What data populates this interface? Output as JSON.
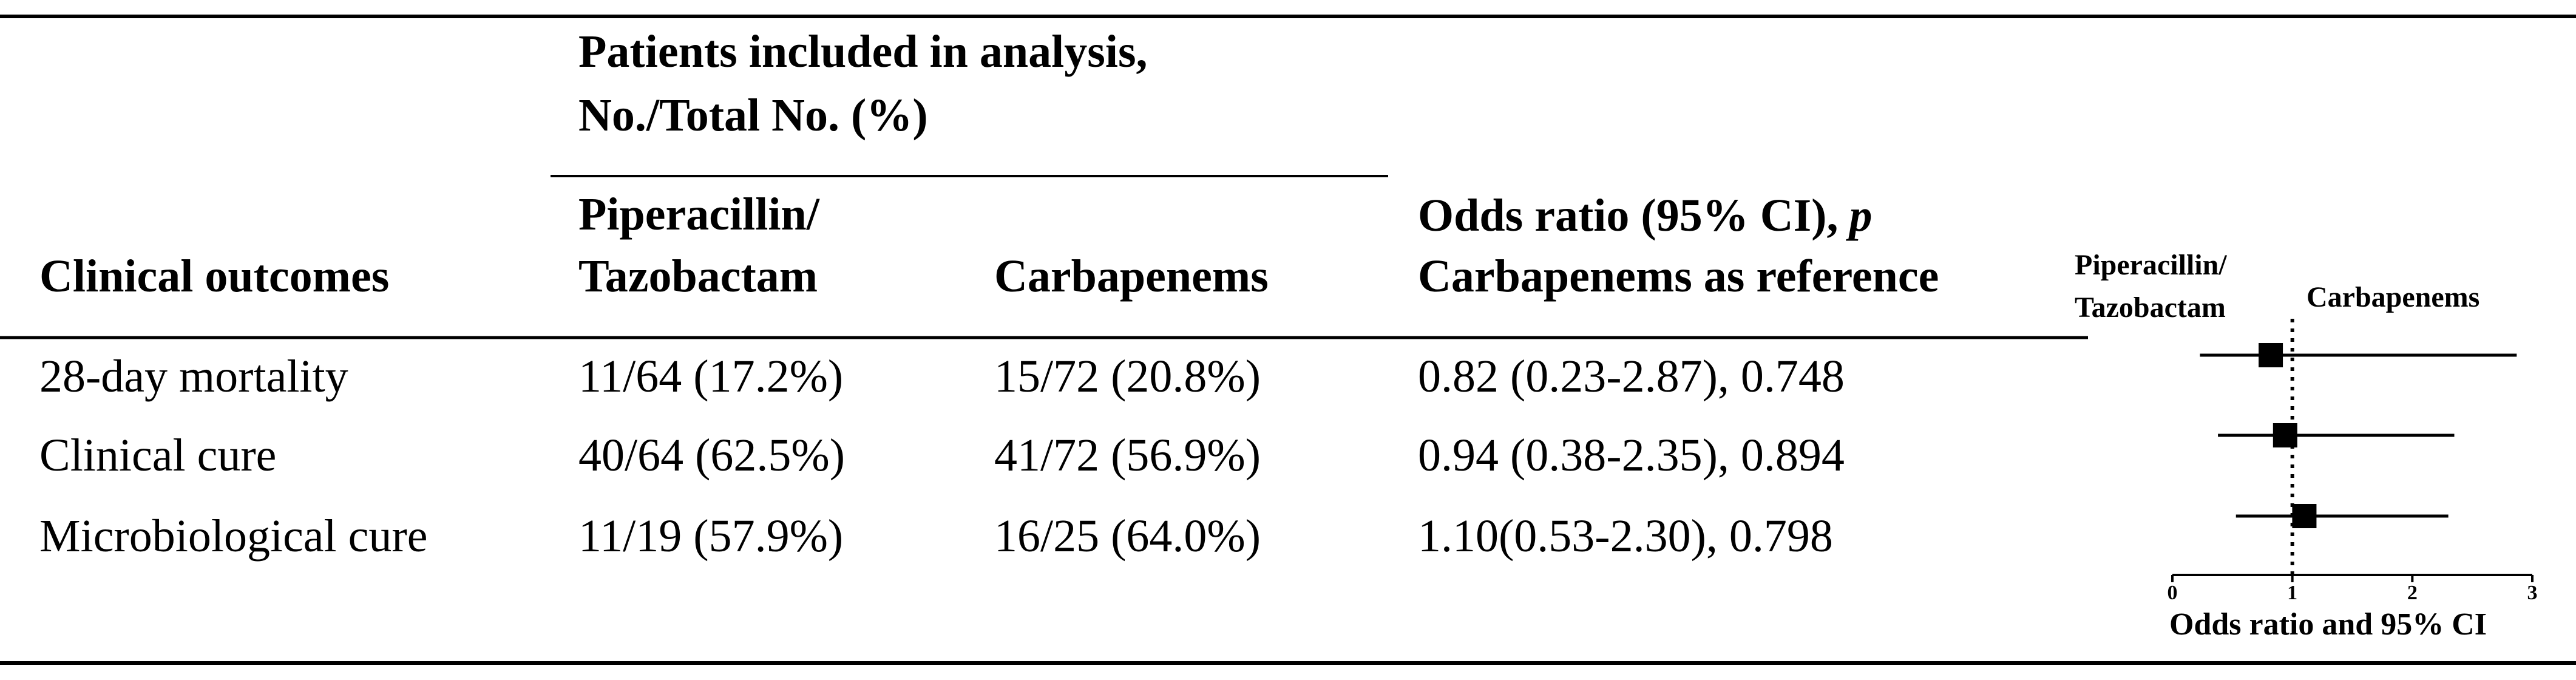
{
  "table": {
    "group_header": [
      "Patients included in analysis,",
      "No./Total No. (%)"
    ],
    "columns": [
      [
        "Clinical outcomes"
      ],
      [
        "Piperacillin/",
        "Tazobactam"
      ],
      [
        "Carbapenems"
      ],
      {
        "line1": "Odds ratio (95% CI),",
        "line1_italic": "p",
        "line2": "Carbapenems as reference"
      }
    ],
    "rows": [
      [
        "28-day mortality",
        "11/64 (17.2%)",
        "15/72 (20.8%)",
        "0.82 (0.23-2.87), 0.748"
      ],
      [
        "Clinical cure",
        "40/64 (62.5%)",
        "41/72 (56.9%)",
        "0.94 (0.38-2.35), 0.894"
      ],
      [
        "Microbiological cure",
        "11/19 (57.9%)",
        "16/25 (64.0%)",
        "1.10(0.53-2.30), 0.798"
      ]
    ]
  },
  "chart_data": {
    "type": "forest",
    "left_label": [
      "Piperacillin/",
      "Tazobactam"
    ],
    "right_label": "Carbapenems",
    "xlabel": "Odds ratio and 95% CI",
    "values": [
      0.82,
      0.94,
      1.1
    ],
    "lower": [
      0.23,
      0.38,
      0.53
    ],
    "upper": [
      2.87,
      2.35,
      2.3
    ],
    "xlim": [
      0,
      3
    ],
    "xticks": [
      0,
      1,
      2,
      3
    ],
    "reference": 1
  }
}
